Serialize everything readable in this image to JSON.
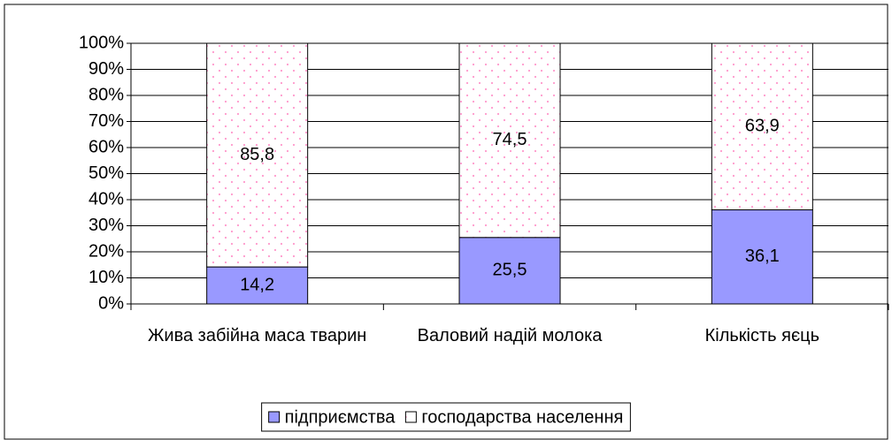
{
  "chart_data": {
    "type": "bar",
    "stacked": true,
    "categories": [
      "Жива забійна маса тварин",
      "Валовий надій молока",
      "Кількість яєць"
    ],
    "series": [
      {
        "name": "підприємства",
        "color": "#9999ff",
        "values": [
          14.2,
          25.5,
          36.1
        ],
        "value_labels": [
          "14,2",
          "25,5",
          "36,1"
        ]
      },
      {
        "name": "господарства населення",
        "color": "#ff99cc",
        "values": [
          85.8,
          74.5,
          63.9
        ],
        "value_labels": [
          "85,8",
          "74,5",
          "63,9"
        ]
      }
    ],
    "ylim": [
      0,
      100
    ],
    "yticks": [
      {
        "value": 0,
        "label": "0%"
      },
      {
        "value": 10,
        "label": "10%"
      },
      {
        "value": 20,
        "label": "20%"
      },
      {
        "value": 30,
        "label": "30%"
      },
      {
        "value": 40,
        "label": "40%"
      },
      {
        "value": 50,
        "label": "50%"
      },
      {
        "value": 60,
        "label": "60%"
      },
      {
        "value": 70,
        "label": "70%"
      },
      {
        "value": 80,
        "label": "80%"
      },
      {
        "value": 90,
        "label": "90%"
      },
      {
        "value": 100,
        "label": "100%"
      }
    ],
    "grid": true,
    "legend": "bottom"
  }
}
